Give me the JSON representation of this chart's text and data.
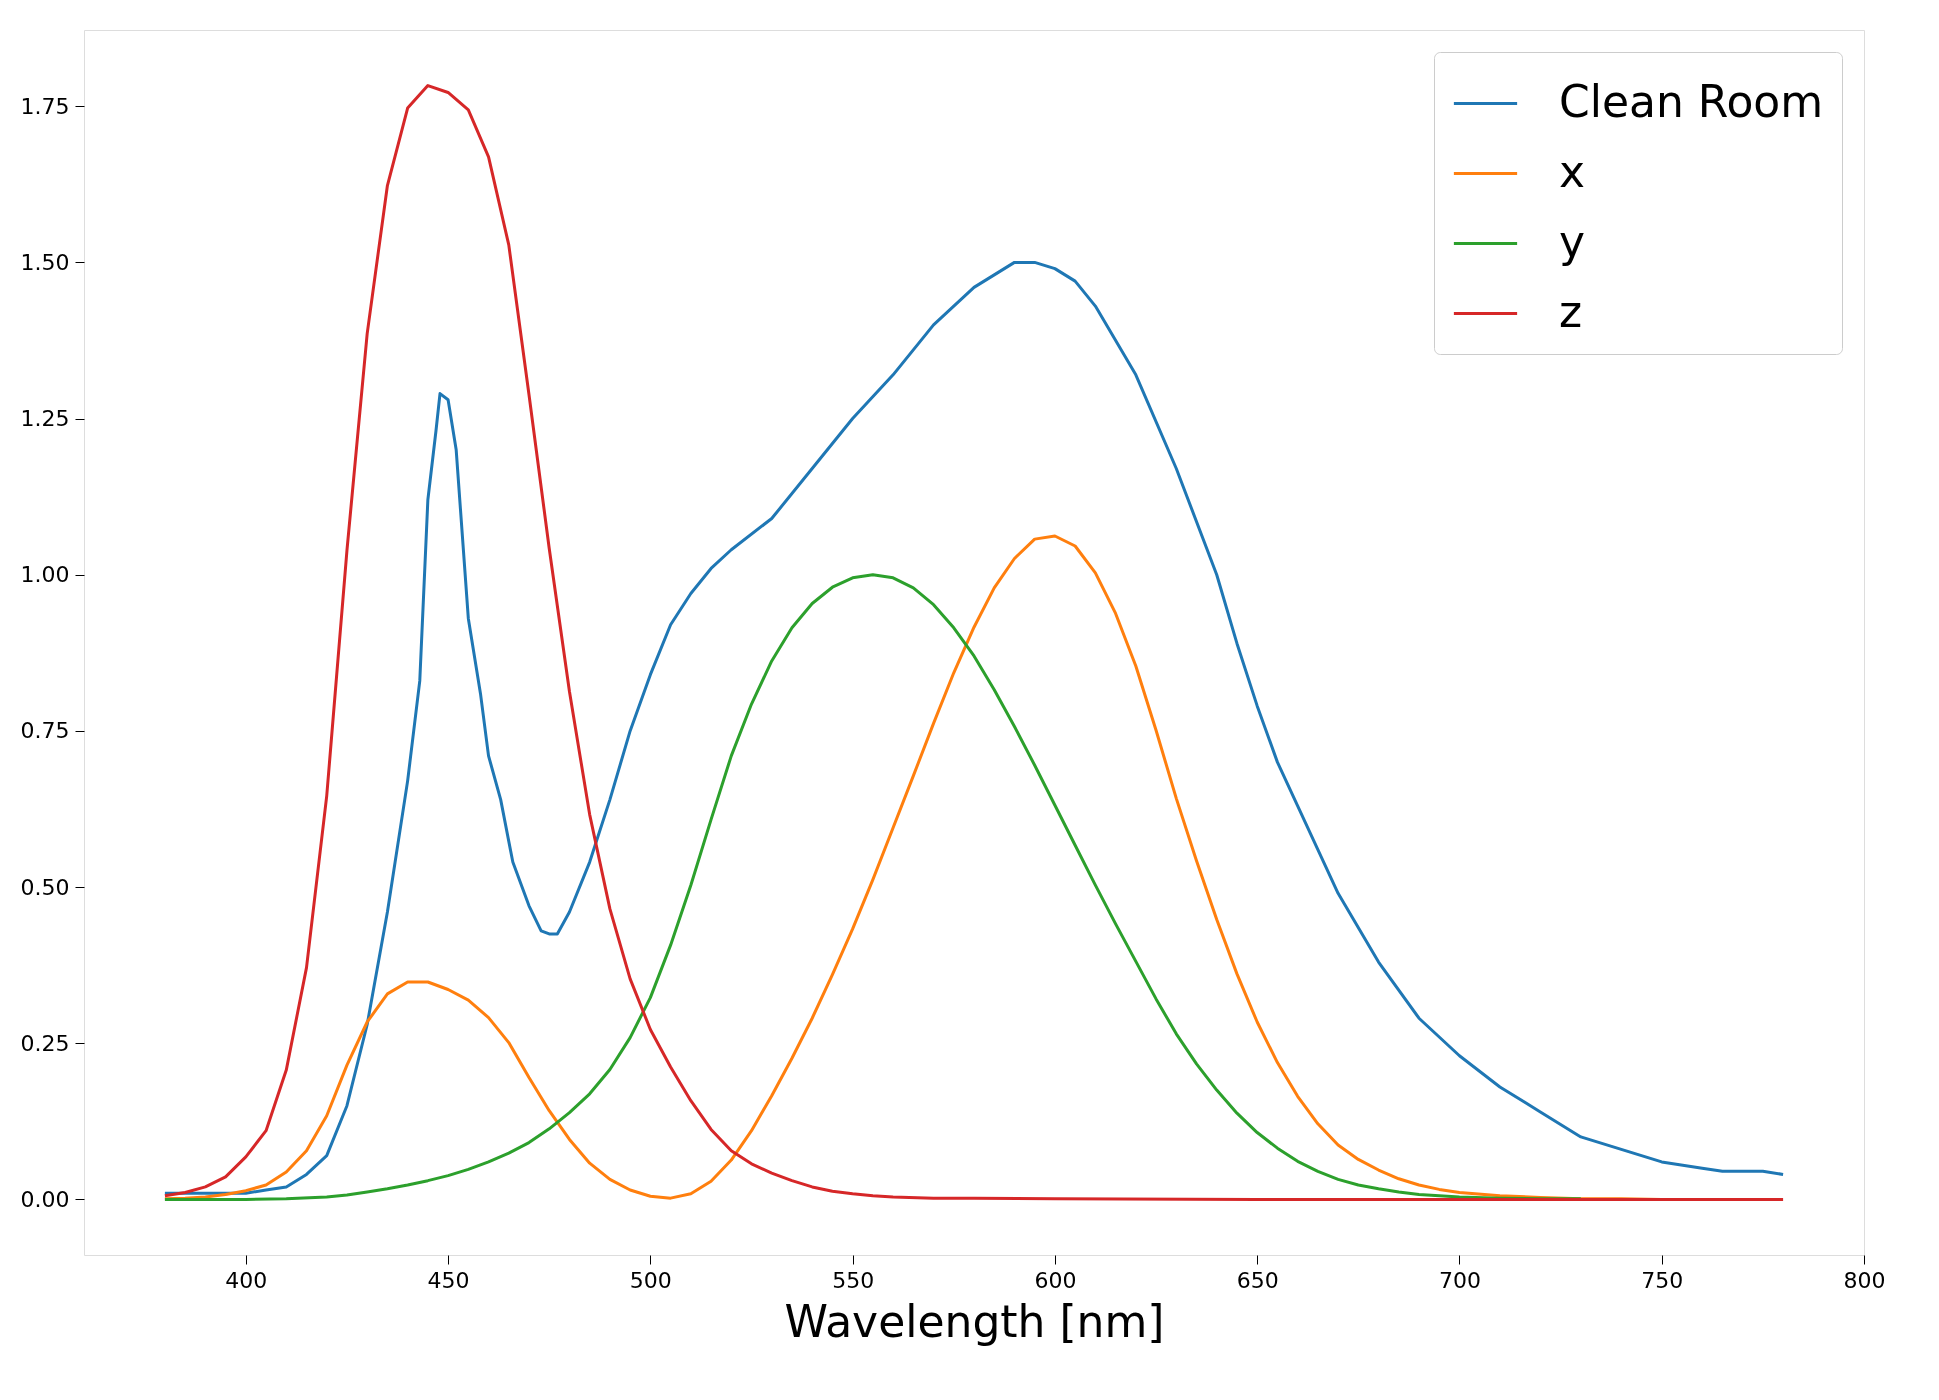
{
  "chart_data": {
    "type": "line",
    "xlabel": "Wavelength [nm]",
    "xlim": [
      360,
      800
    ],
    "xticks": [
      400,
      450,
      500,
      550,
      600,
      650,
      700,
      750,
      800
    ],
    "ylim": [
      -0.089,
      1.872
    ],
    "yticks": [
      {
        "value": 0,
        "label": "0.00"
      },
      {
        "value": 0.25,
        "label": "0.25"
      },
      {
        "value": 0.5,
        "label": "0.50"
      },
      {
        "value": 0.75,
        "label": "0.75"
      },
      {
        "value": 1,
        "label": "1.00"
      },
      {
        "value": 1.25,
        "label": "1.25"
      },
      {
        "value": 1.5,
        "label": "1.50"
      },
      {
        "value": 1.75,
        "label": "1.75"
      }
    ],
    "grid": false,
    "legend": "top right",
    "marker": "none",
    "line_style": "solid",
    "series": [
      {
        "name": "Clean Room",
        "color": "#1f77b4",
        "x": [
          380,
          390,
          400,
          405,
          410,
          415,
          420,
          425,
          430,
          435,
          440,
          443,
          445,
          447,
          448,
          450,
          452,
          455,
          458,
          460,
          463,
          466,
          470,
          473,
          475,
          477,
          480,
          485,
          490,
          495,
          500,
          505,
          510,
          515,
          520,
          530,
          540,
          550,
          560,
          570,
          580,
          585,
          590,
          595,
          600,
          605,
          610,
          620,
          630,
          640,
          645,
          650,
          655,
          660,
          665,
          670,
          680,
          690,
          700,
          710,
          720,
          730,
          740,
          750,
          760,
          765,
          770,
          775,
          780
        ],
        "values": [
          0.01,
          0.01,
          0.01,
          0.015,
          0.02,
          0.04,
          0.07,
          0.15,
          0.28,
          0.46,
          0.67,
          0.83,
          1.12,
          1.23,
          1.29,
          1.28,
          1.2,
          0.93,
          0.81,
          0.71,
          0.64,
          0.54,
          0.47,
          0.43,
          0.425,
          0.425,
          0.46,
          0.54,
          0.64,
          0.75,
          0.84,
          0.92,
          0.97,
          1.01,
          1.04,
          1.09,
          1.17,
          1.25,
          1.32,
          1.4,
          1.46,
          1.48,
          1.5,
          1.5,
          1.49,
          1.47,
          1.43,
          1.32,
          1.17,
          1.0,
          0.89,
          0.79,
          0.7,
          0.63,
          0.56,
          0.49,
          0.38,
          0.29,
          0.23,
          0.18,
          0.14,
          0.1,
          0.08,
          0.06,
          0.05,
          0.045,
          0.045,
          0.045,
          0.04
        ]
      },
      {
        "name": "x",
        "color": "#ff7f0e",
        "x": [
          380,
          385,
          390,
          395,
          400,
          405,
          410,
          415,
          420,
          425,
          430,
          435,
          440,
          445,
          450,
          455,
          460,
          465,
          470,
          475,
          480,
          485,
          490,
          495,
          500,
          505,
          510,
          515,
          520,
          525,
          530,
          535,
          540,
          545,
          550,
          555,
          560,
          565,
          570,
          575,
          580,
          585,
          590,
          595,
          600,
          605,
          610,
          615,
          620,
          625,
          630,
          635,
          640,
          645,
          650,
          655,
          660,
          665,
          670,
          675,
          680,
          685,
          690,
          695,
          700,
          710,
          720,
          730,
          740,
          750,
          760
        ],
        "values": [
          0.001,
          0.002,
          0.004,
          0.008,
          0.014,
          0.023,
          0.044,
          0.078,
          0.134,
          0.215,
          0.284,
          0.329,
          0.348,
          0.348,
          0.336,
          0.319,
          0.291,
          0.251,
          0.195,
          0.142,
          0.096,
          0.058,
          0.032,
          0.015,
          0.005,
          0.002,
          0.009,
          0.029,
          0.063,
          0.11,
          0.166,
          0.226,
          0.29,
          0.36,
          0.433,
          0.512,
          0.595,
          0.678,
          0.762,
          0.843,
          0.916,
          0.979,
          1.026,
          1.057,
          1.062,
          1.046,
          1.003,
          0.938,
          0.854,
          0.751,
          0.642,
          0.542,
          0.448,
          0.361,
          0.284,
          0.219,
          0.165,
          0.121,
          0.087,
          0.064,
          0.047,
          0.033,
          0.023,
          0.016,
          0.011,
          0.006,
          0.003,
          0.001,
          0.001,
          0.0,
          0.0
        ]
      },
      {
        "name": "y",
        "color": "#2ca02c",
        "x": [
          380,
          390,
          400,
          410,
          420,
          425,
          430,
          435,
          440,
          445,
          450,
          455,
          460,
          465,
          470,
          475,
          480,
          485,
          490,
          495,
          500,
          505,
          510,
          515,
          520,
          525,
          530,
          535,
          540,
          545,
          550,
          555,
          560,
          565,
          570,
          575,
          580,
          585,
          590,
          595,
          600,
          605,
          610,
          615,
          620,
          625,
          630,
          635,
          640,
          645,
          650,
          655,
          660,
          665,
          670,
          675,
          680,
          685,
          690,
          695,
          700,
          710,
          720,
          730
        ],
        "values": [
          0.0,
          0.0,
          0.0,
          0.001,
          0.004,
          0.007,
          0.012,
          0.017,
          0.023,
          0.03,
          0.038,
          0.048,
          0.06,
          0.074,
          0.091,
          0.113,
          0.139,
          0.169,
          0.208,
          0.259,
          0.323,
          0.407,
          0.503,
          0.608,
          0.71,
          0.793,
          0.862,
          0.915,
          0.954,
          0.98,
          0.995,
          1.0,
          0.995,
          0.979,
          0.952,
          0.915,
          0.87,
          0.816,
          0.757,
          0.695,
          0.631,
          0.567,
          0.503,
          0.441,
          0.381,
          0.321,
          0.265,
          0.217,
          0.175,
          0.138,
          0.107,
          0.082,
          0.061,
          0.045,
          0.032,
          0.023,
          0.017,
          0.012,
          0.008,
          0.006,
          0.004,
          0.002,
          0.001,
          0.001
        ]
      },
      {
        "name": "z",
        "color": "#d62728",
        "x": [
          380,
          385,
          390,
          395,
          400,
          405,
          410,
          415,
          420,
          425,
          430,
          435,
          440,
          445,
          450,
          455,
          460,
          465,
          470,
          475,
          480,
          485,
          490,
          495,
          500,
          505,
          510,
          515,
          520,
          525,
          530,
          535,
          540,
          545,
          550,
          555,
          560,
          570,
          580,
          600,
          650,
          700,
          780
        ],
        "values": [
          0.006,
          0.011,
          0.02,
          0.036,
          0.068,
          0.11,
          0.207,
          0.371,
          0.646,
          1.039,
          1.386,
          1.623,
          1.747,
          1.783,
          1.772,
          1.744,
          1.669,
          1.528,
          1.288,
          1.042,
          0.813,
          0.616,
          0.465,
          0.353,
          0.272,
          0.212,
          0.158,
          0.112,
          0.078,
          0.057,
          0.042,
          0.03,
          0.02,
          0.013,
          0.009,
          0.006,
          0.004,
          0.002,
          0.002,
          0.001,
          0.0,
          0.0,
          0.0
        ]
      }
    ]
  }
}
